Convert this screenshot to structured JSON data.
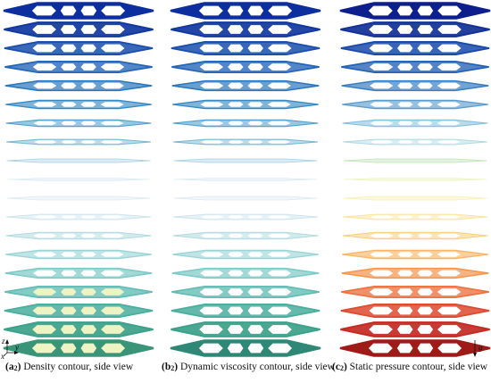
{
  "panels": [
    {
      "id": "a",
      "caption_tag": "(a",
      "caption_sub": "2",
      "caption_close": ")",
      "caption_text": " Density contour, side view",
      "colors": [
        "#0d2e9e",
        "#12399f",
        "#1a4fae",
        "#2364b8",
        "#2a76bd",
        "#3689c4",
        "#4f9fcb",
        "#74b6d4",
        "#a6d0e2",
        "#cfe5ee",
        "#dde9f1",
        "#cfe4ec",
        "#b3dbe1",
        "#9ad4d6",
        "#7cc9c6",
        "#62bcb4",
        "#4aae9e",
        "#3ca18a",
        "#3a9478"
      ],
      "accent": "#d6e84a"
    },
    {
      "id": "b",
      "caption_tag": "(b",
      "caption_sub": "2",
      "caption_close": ")",
      "caption_text": " Dynamic viscosity contour, side view",
      "colors": [
        "#0d2e9e",
        "#12399f",
        "#1a4fae",
        "#2364b8",
        "#2a76bd",
        "#3689c4",
        "#4f9fcb",
        "#74b6d4",
        "#a6d0e2",
        "#cfe5ee",
        "#dde9f1",
        "#cfe4ec",
        "#b3dbe1",
        "#9ad4d6",
        "#7cc9c6",
        "#62bcb4",
        "#4aae9e",
        "#3ca18a",
        "#2f8876"
      ],
      "accent": "#bfe7c8"
    },
    {
      "id": "c",
      "caption_tag": "(c",
      "caption_sub": "2",
      "caption_close": ")",
      "caption_text": " Static pressure contour, side view",
      "colors": [
        "#0c1f8c",
        "#123298",
        "#1a4aab",
        "#2462b6",
        "#3a7fc2",
        "#5b9ccf",
        "#86bfdc",
        "#b1dbe3",
        "#bfe2b8",
        "#e7f0b0",
        "#f7efb0",
        "#fbe3a0",
        "#fbd07f",
        "#f9b565",
        "#f4954e",
        "#ec723f",
        "#dd4b30",
        "#c42b23",
        "#9e1b18"
      ],
      "accent": "#ffffff"
    }
  ],
  "axes_left": {
    "z": "z",
    "y": "y",
    "x": "x"
  },
  "gravity_label": "g"
}
